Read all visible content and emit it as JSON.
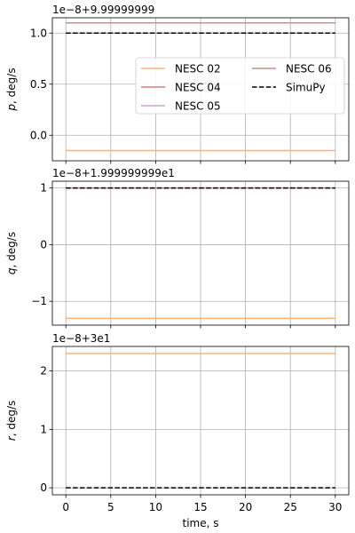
{
  "chart_data": [
    {
      "type": "line",
      "offset_label": "1e−8+9.99999999",
      "ylabel_var": "p",
      "ylabel_unit": ", deg/s",
      "ylim": [
        -0.25,
        1.15
      ],
      "yticks": [
        {
          "value": 0.0,
          "label": "0.0"
        },
        {
          "value": 0.5,
          "label": "0.5"
        },
        {
          "value": 1.0,
          "label": "1.0"
        }
      ],
      "xlim": [
        -1.5,
        31.5
      ],
      "x": [
        0,
        30
      ],
      "grid": true,
      "show_xticklabels": false,
      "series": [
        {
          "name": "NESC 02",
          "color": "#ffb26f",
          "dash": "solid",
          "values": [
            -0.15,
            -0.15
          ]
        },
        {
          "name": "NESC 04",
          "color": "#e07a7b",
          "dash": "solid",
          "values": [
            1.0,
            1.0
          ]
        },
        {
          "name": "NESC 05",
          "color": "#c8a3d6",
          "dash": "solid",
          "values": [
            1.0,
            1.0
          ]
        },
        {
          "name": "NESC 06",
          "color": "#c4928b",
          "dash": "solid",
          "values": [
            1.1,
            1.1
          ]
        },
        {
          "name": "SimuPy",
          "color": "#000000",
          "dash": "dashed",
          "values": [
            1.0,
            1.0
          ]
        }
      ],
      "legend": {
        "location": "center-right",
        "columns": 2
      }
    },
    {
      "type": "line",
      "offset_label": "1e−8+1.999999999e1",
      "ylabel_var": "q",
      "ylabel_unit": ", deg/s",
      "ylim": [
        -1.42,
        1.12
      ],
      "yticks": [
        {
          "value": -1,
          "label": "−1"
        },
        {
          "value": 0,
          "label": "0"
        },
        {
          "value": 1,
          "label": "1"
        }
      ],
      "xlim": [
        -1.5,
        31.5
      ],
      "x": [
        0,
        30
      ],
      "grid": true,
      "show_xticklabels": false,
      "series": [
        {
          "name": "NESC 02",
          "color": "#ffb26f",
          "dash": "solid",
          "values": [
            -1.3,
            -1.3
          ]
        },
        {
          "name": "NESC 06",
          "color": "#c4928b",
          "dash": "solid",
          "values": [
            1.0,
            1.0
          ]
        },
        {
          "name": "SimuPy",
          "color": "#000000",
          "dash": "dashed",
          "values": [
            1.0,
            1.0
          ]
        }
      ]
    },
    {
      "type": "line",
      "offset_label": "1e−8+3e1",
      "ylabel_var": "r",
      "ylabel_unit": ", deg/s",
      "ylim": [
        -0.12,
        2.42
      ],
      "yticks": [
        {
          "value": 0,
          "label": "0"
        },
        {
          "value": 1,
          "label": "1"
        },
        {
          "value": 2,
          "label": "2"
        }
      ],
      "xlim": [
        -1.5,
        31.5
      ],
      "x": [
        0,
        30
      ],
      "grid": true,
      "show_xticklabels": true,
      "xlabel": "time, s",
      "xticks": [
        {
          "value": 0,
          "label": "0"
        },
        {
          "value": 5,
          "label": "5"
        },
        {
          "value": 10,
          "label": "10"
        },
        {
          "value": 15,
          "label": "15"
        },
        {
          "value": 20,
          "label": "20"
        },
        {
          "value": 25,
          "label": "25"
        },
        {
          "value": 30,
          "label": "30"
        }
      ],
      "series": [
        {
          "name": "NESC 02",
          "color": "#ffb26f",
          "dash": "solid",
          "values": [
            2.3,
            2.3
          ]
        },
        {
          "name": "SimuPy",
          "color": "#000000",
          "dash": "dashed",
          "values": [
            0.0,
            0.0
          ]
        }
      ]
    }
  ]
}
